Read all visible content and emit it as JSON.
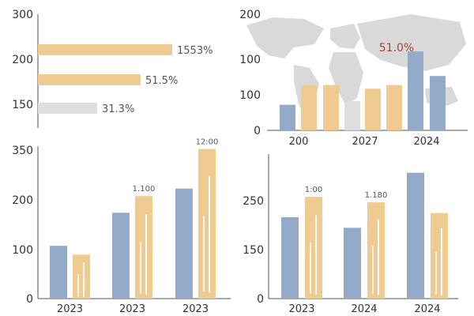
{
  "colors": {
    "blue": "#93abc9",
    "orange": "#f0cb91",
    "gray": "#dedede",
    "axis": "#555555",
    "tick": "#333333",
    "label": "#555555",
    "highlight": "#a8433a",
    "map": "#d9d9d9",
    "grid": "#eef1f4"
  },
  "chart_data": [
    {
      "type": "bar",
      "orientation": "horizontal",
      "y_ticks": [
        "300",
        "200",
        "150"
      ],
      "ylim": [
        150,
        300
      ],
      "bars": [
        {
          "value": 1553,
          "label": "1553%",
          "color": "orange"
        },
        {
          "value": 51.5,
          "label": "51.5%",
          "color": "orange"
        },
        {
          "value": 31.3,
          "label": "31.3%",
          "color": "gray"
        }
      ]
    },
    {
      "type": "bar",
      "background": "world map",
      "y_ticks": [
        "200",
        "100",
        "100",
        "0"
      ],
      "ylim": [
        0,
        200
      ],
      "x_tick_labels": [
        "200",
        "2027",
        "2024"
      ],
      "annotation": "51.0%",
      "bars": [
        {
          "value": 48,
          "color": "blue"
        },
        {
          "value": 85,
          "color": "orange"
        },
        {
          "value": 85,
          "color": "orange"
        },
        {
          "value": 55,
          "color": "gray"
        },
        {
          "value": 78,
          "color": "orange"
        },
        {
          "value": 85,
          "color": "orange"
        },
        {
          "value": 148,
          "color": "blue"
        },
        {
          "value": 102,
          "color": "blue"
        }
      ]
    },
    {
      "type": "bar",
      "y_ticks": [
        "350",
        "200",
        "100",
        "0"
      ],
      "ylim": [
        0,
        350
      ],
      "categories": [
        "2023",
        "2023",
        "2023"
      ],
      "series": [
        {
          "color": "blue",
          "values": [
            120,
            195,
            250
          ]
        },
        {
          "color": "orange",
          "values": [
            100,
            233,
            340
          ]
        }
      ],
      "data_labels": [
        "",
        "1.100",
        "12:00"
      ]
    },
    {
      "type": "bar",
      "y_ticks": [
        "250",
        "150",
        "0"
      ],
      "ylim": [
        0,
        350
      ],
      "categories": [
        "2023",
        "2024",
        "2024"
      ],
      "series": [
        {
          "color": "blue",
          "values": [
            176,
            153,
            272
          ]
        },
        {
          "color": "orange",
          "values": [
            220,
            208,
            185
          ]
        }
      ],
      "data_labels": [
        "1:00",
        "1.180",
        ""
      ]
    }
  ]
}
